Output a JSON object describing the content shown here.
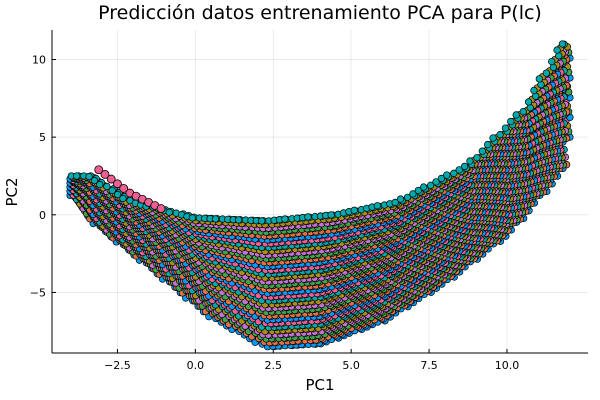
{
  "chart_data": {
    "type": "scatter",
    "title": "Predicción datos entrenamiento PCA para P(lc)",
    "xlabel": "PC1",
    "ylabel": "PC2",
    "xlim": [
      -4.6,
      12.6
    ],
    "ylim": [
      -8.9,
      11.9
    ],
    "xticks": [
      -2.5,
      0.0,
      2.5,
      5.0,
      7.5,
      10.0
    ],
    "xtick_labels": [
      "−2.5",
      "0.0",
      "2.5",
      "5.0",
      "7.5",
      "10.0"
    ],
    "yticks": [
      -5,
      0,
      5,
      10
    ],
    "ytick_labels": [
      "−5",
      "0",
      "5",
      "10"
    ],
    "grid": true,
    "legend": "none",
    "palette": [
      "#009AFA",
      "#E36F47",
      "#3EA44E",
      "#C371D2",
      "#AC8D18",
      "#00A9AD",
      "#ED5E93"
    ],
    "marker_stroke": "#000000",
    "highlight_color": "#ED5E93",
    "cloud": {
      "description_free_params": true,
      "inner_curve": {
        "x": [
          -3.4,
          -2,
          0,
          2.3,
          4.5,
          6.5,
          8.8,
          10.6,
          11.8
        ],
        "y": [
          2.5,
          0.8,
          -0.2,
          -0.4,
          0.0,
          0.8,
          3.2,
          6.8,
          11.0
        ]
      },
      "outer_curve": {
        "x": [
          -4.0,
          -3.2,
          -1.5,
          0.5,
          2.3,
          4.0,
          6.0,
          8.0,
          10.0,
          11.8,
          12.2
        ],
        "y": [
          1.5,
          -0.5,
          -3.2,
          -6.5,
          -8.5,
          -8.3,
          -6.8,
          -4.3,
          -1.2,
          3.0,
          11.0
        ]
      }
    },
    "highlight_series": {
      "x": [
        -3.1,
        -2.9,
        -2.7,
        -2.5,
        -2.3,
        -2.1,
        -1.9,
        -1.7,
        -1.5,
        -1.3,
        -1.1
      ],
      "y": [
        2.9,
        2.6,
        2.3,
        2.0,
        1.7,
        1.4,
        1.2,
        1.0,
        0.8,
        0.6,
        0.4
      ]
    }
  }
}
